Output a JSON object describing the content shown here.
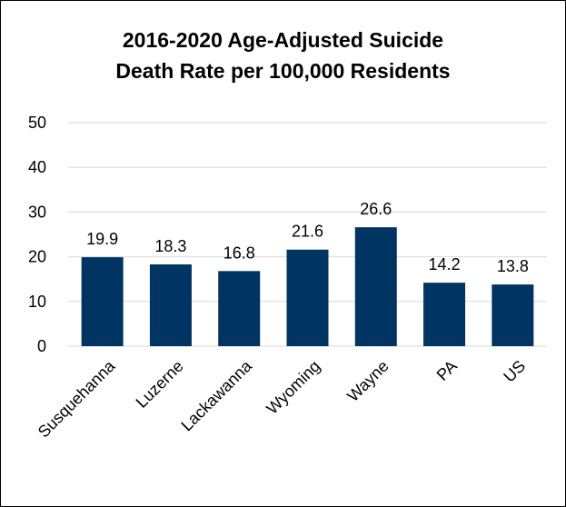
{
  "chart_data": {
    "type": "bar",
    "title_line1": "2016-2020 Age-Adjusted Suicide",
    "title_line2": "Death Rate per 100,000 Residents",
    "categories": [
      "Susquehanna",
      "Luzerne",
      "Lackawanna",
      "Wyoming",
      "Wayne",
      "PA",
      "US"
    ],
    "values": [
      19.9,
      18.3,
      16.8,
      21.6,
      26.6,
      14.2,
      13.8
    ],
    "value_labels": [
      "19.9",
      "18.3",
      "16.8",
      "21.6",
      "26.6",
      "14.2",
      "13.8"
    ],
    "ylim": [
      0,
      50
    ],
    "yticks": [
      0,
      10,
      20,
      30,
      40,
      50
    ],
    "grid": true,
    "bar_color": "#003462",
    "grid_color": "#d9d9d9"
  }
}
